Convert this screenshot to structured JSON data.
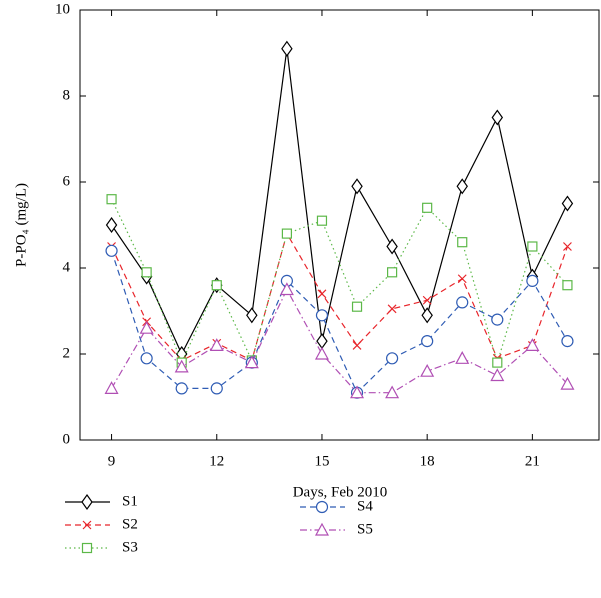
{
  "chart_data": {
    "type": "line",
    "xlabel": "Days, Feb 2010",
    "ylabel": "P-PO₄ (mg/L)",
    "x": [
      9,
      10,
      11,
      12,
      13,
      14,
      15,
      16,
      17,
      18,
      19,
      20,
      21,
      22
    ],
    "xlim": [
      8.1,
      22.9
    ],
    "xticks": [
      9,
      12,
      15,
      18,
      21
    ],
    "ylim": [
      0,
      10
    ],
    "yticks": [
      0,
      2,
      4,
      6,
      8,
      10
    ],
    "series": [
      {
        "name": "S1",
        "color": "#000000",
        "marker": "diamond",
        "dash": "solid",
        "values": [
          5.0,
          3.8,
          2.0,
          3.6,
          2.9,
          9.1,
          2.3,
          5.9,
          4.5,
          2.9,
          5.9,
          7.5,
          3.8,
          5.5
        ]
      },
      {
        "name": "S2",
        "color": "#e8252b",
        "marker": "x",
        "dash": "dashed",
        "values": [
          4.5,
          2.75,
          1.85,
          2.25,
          1.85,
          4.8,
          3.4,
          2.2,
          3.05,
          3.25,
          3.75,
          1.9,
          2.2,
          4.5
        ]
      },
      {
        "name": "S3",
        "color": "#5cb848",
        "marker": "square",
        "dash": "dotted",
        "values": [
          5.6,
          3.9,
          1.8,
          3.6,
          1.85,
          4.8,
          5.1,
          3.1,
          3.9,
          5.4,
          4.6,
          1.8,
          4.5,
          3.6
        ]
      },
      {
        "name": "S4",
        "color": "#2f5cb4",
        "marker": "circle",
        "dash": "dashed",
        "values": [
          4.4,
          1.9,
          1.2,
          1.2,
          1.8,
          3.7,
          2.9,
          1.1,
          1.9,
          2.3,
          3.2,
          2.8,
          3.7,
          2.3
        ]
      },
      {
        "name": "S5",
        "color": "#b04fb4",
        "marker": "triangle",
        "dash": "dashdot",
        "values": [
          1.2,
          2.6,
          1.7,
          2.2,
          1.8,
          3.5,
          2.0,
          1.1,
          1.1,
          1.6,
          1.9,
          1.5,
          2.2,
          1.3
        ]
      }
    ]
  }
}
